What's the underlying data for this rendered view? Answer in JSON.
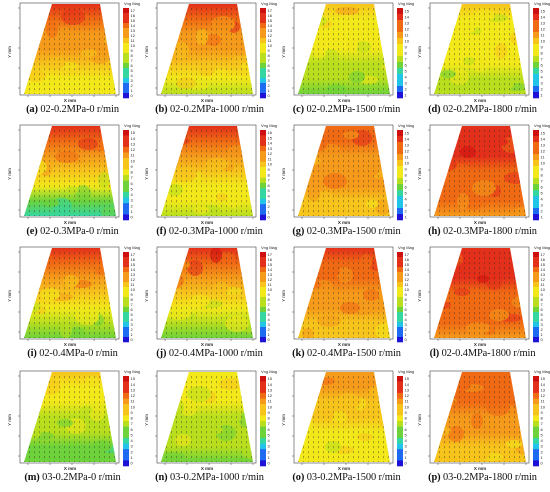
{
  "figure": {
    "legend_title": "Vng Mag",
    "x_axis_label": "X mm",
    "y_axis_label": "Y mm",
    "colorscale": [
      "#1f12d6",
      "#1e6af0",
      "#22c4e8",
      "#35d6a0",
      "#6ed23a",
      "#b8de1e",
      "#f2e81a",
      "#f7c41c",
      "#f59a1a",
      "#f06a14",
      "#e3301a",
      "#cf1010"
    ],
    "panels": [
      {
        "label": "(a)",
        "text": "02-0.2MPa-0 r/min",
        "colorbar_ticks": [
          "17",
          "16",
          "15",
          "14",
          "13",
          "12",
          "11",
          "10",
          "9",
          "8",
          "7",
          "6",
          "5",
          "4",
          "3",
          "2",
          "1",
          "0"
        ],
        "field_low": 0.52,
        "field_high": 0.88
      },
      {
        "label": "(b)",
        "text": "02-0.2MPa-1000 r/min",
        "colorbar_ticks": [
          "17",
          "16",
          "15",
          "14",
          "13",
          "12",
          "11",
          "10",
          "9",
          "8",
          "7",
          "6",
          "5",
          "4",
          "3",
          "2",
          "1",
          "0"
        ],
        "field_low": 0.48,
        "field_high": 0.9
      },
      {
        "label": "(c)",
        "text": "02-0.2MPa-1500 r/min",
        "colorbar_ticks": [
          "15",
          "14",
          "13",
          "12",
          "11",
          "10",
          "9",
          "8",
          "7",
          "6",
          "5",
          "4",
          "3",
          "2",
          "1"
        ],
        "field_low": 0.4,
        "field_high": 0.62
      },
      {
        "label": "(d)",
        "text": "02-0.2MPa-1800 r/min",
        "colorbar_ticks": [
          "15",
          "14",
          "13",
          "12",
          "11",
          "10",
          "9",
          "8",
          "7",
          "6",
          "5",
          "4",
          "3",
          "2",
          "1"
        ],
        "field_low": 0.45,
        "field_high": 0.6
      },
      {
        "label": "(e)",
        "text": "02-0.3MPa-0 r/min",
        "colorbar_ticks": [
          "15",
          "14",
          "13",
          "12",
          "11",
          "10",
          "9",
          "8",
          "7",
          "6",
          "5",
          "4",
          "3",
          "2",
          "1",
          "0"
        ],
        "field_low": 0.3,
        "field_high": 0.92
      },
      {
        "label": "(f)",
        "text": "02-0.3MPa-1000 r/min",
        "colorbar_ticks": [
          "16",
          "15",
          "14",
          "13",
          "12",
          "11",
          "10",
          "9",
          "8",
          "7",
          "6",
          "5",
          "4",
          "3",
          "2",
          "1",
          "0"
        ],
        "field_low": 0.42,
        "field_high": 0.9
      },
      {
        "label": "(g)",
        "text": "02-0.3MPa-1500 r/min",
        "colorbar_ticks": [
          "15",
          "14",
          "13",
          "12",
          "11",
          "10",
          "9",
          "8",
          "7",
          "6",
          "5",
          "4",
          "3",
          "2",
          "1"
        ],
        "field_low": 0.62,
        "field_high": 0.82
      },
      {
        "label": "(h)",
        "text": "02-0.3MPa-1800 r/min",
        "colorbar_ticks": [
          "15",
          "14",
          "13",
          "12",
          "11",
          "10",
          "9",
          "8",
          "7",
          "6",
          "5",
          "4",
          "3",
          "2",
          "1"
        ],
        "field_low": 0.75,
        "field_high": 0.93
      },
      {
        "label": "(i)",
        "text": "02-0.4MPa-0 r/min",
        "colorbar_ticks": [
          "17",
          "16",
          "15",
          "14",
          "13",
          "12",
          "11",
          "10",
          "9",
          "8",
          "7",
          "6",
          "5",
          "4",
          "3",
          "2",
          "1",
          "0"
        ],
        "field_low": 0.38,
        "field_high": 0.92
      },
      {
        "label": "(j)",
        "text": "02-0.4MPa-1000 r/min",
        "colorbar_ticks": [
          "17",
          "16",
          "15",
          "14",
          "13",
          "12",
          "11",
          "10",
          "9",
          "8",
          "7",
          "6",
          "5",
          "4",
          "3",
          "2",
          "1",
          "0"
        ],
        "field_low": 0.36,
        "field_high": 0.92
      },
      {
        "label": "(k)",
        "text": "02-0.4MPa-1500 r/min",
        "colorbar_ticks": [
          "17",
          "16",
          "15",
          "14",
          "13",
          "12",
          "11",
          "10",
          "9",
          "8",
          "7",
          "6",
          "5",
          "4",
          "3",
          "2",
          "1",
          "0"
        ],
        "field_low": 0.6,
        "field_high": 0.9
      },
      {
        "label": "(l)",
        "text": "02-0.4MPa-1800 r/min",
        "colorbar_ticks": [
          "17",
          "16",
          "15",
          "14",
          "13",
          "12",
          "11",
          "10",
          "9",
          "8",
          "7",
          "6",
          "5",
          "4",
          "3",
          "2",
          "1",
          "0"
        ],
        "field_low": 0.76,
        "field_high": 0.95
      },
      {
        "label": "(m)",
        "text": "03-0.2MPa-0 r/min",
        "colorbar_ticks": [
          "15",
          "14",
          "13",
          "12",
          "11",
          "10",
          "9",
          "8",
          "7",
          "6",
          "5",
          "4",
          "3",
          "2",
          "1",
          "0"
        ],
        "field_low": 0.34,
        "field_high": 0.62
      },
      {
        "label": "(n)",
        "text": "03-0.2MPa-1000 r/min",
        "colorbar_ticks": [
          "15",
          "14",
          "13",
          "12",
          "11",
          "10",
          "9",
          "8",
          "7",
          "6",
          "5",
          "4",
          "3",
          "2",
          "1",
          "0"
        ],
        "field_low": 0.38,
        "field_high": 0.58
      },
      {
        "label": "(o)",
        "text": "03-0.2MPa-1500 r/min",
        "colorbar_ticks": [
          "15",
          "14",
          "13",
          "12",
          "11",
          "10",
          "9",
          "8",
          "7",
          "6",
          "5",
          "4",
          "3",
          "2",
          "1",
          "0"
        ],
        "field_low": 0.5,
        "field_high": 0.72
      },
      {
        "label": "(p)",
        "text": "03-0.2MPa-1800 r/min",
        "colorbar_ticks": [
          "15",
          "14",
          "13",
          "12",
          "11",
          "10",
          "9",
          "8",
          "7",
          "6",
          "5",
          "4",
          "3",
          "2",
          "1",
          "0"
        ],
        "field_low": 0.62,
        "field_high": 0.86
      }
    ]
  }
}
